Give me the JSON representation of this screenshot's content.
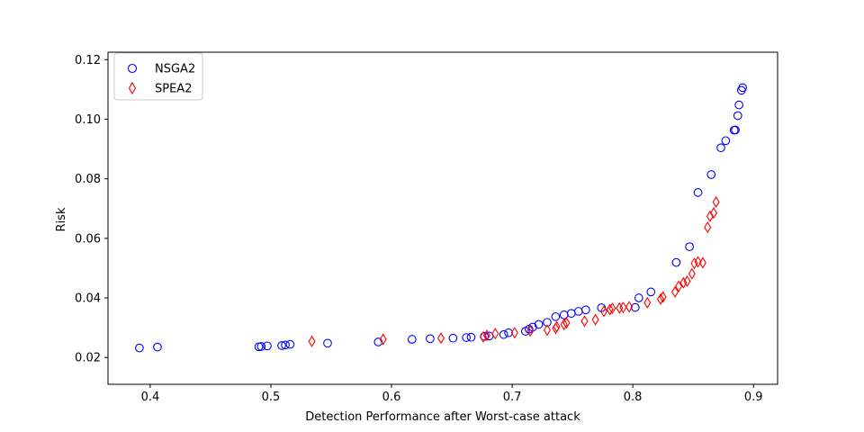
{
  "chart_data": {
    "type": "scatter",
    "title": "",
    "xlabel": "Detection Performance after Worst-case attack",
    "ylabel": "Risk",
    "xlim": [
      0.365,
      0.92
    ],
    "ylim": [
      0.011,
      0.1225
    ],
    "xticks": [
      0.4,
      0.5,
      0.6,
      0.7,
      0.8,
      0.9
    ],
    "xtick_labels": [
      "0.4",
      "0.5",
      "0.6",
      "0.7",
      "0.8",
      "0.9"
    ],
    "yticks": [
      0.02,
      0.04,
      0.06,
      0.08,
      0.1,
      0.12
    ],
    "ytick_labels": [
      "0.02",
      "0.04",
      "0.06",
      "0.08",
      "0.10",
      "0.12"
    ],
    "grid": false,
    "legend_position": "top-left",
    "series": [
      {
        "name": "NSGA2",
        "marker": "circle",
        "color": "#0000ff",
        "points": [
          [
            0.391,
            0.0232
          ],
          [
            0.406,
            0.0235
          ],
          [
            0.49,
            0.0236
          ],
          [
            0.492,
            0.0237
          ],
          [
            0.497,
            0.0239
          ],
          [
            0.509,
            0.024
          ],
          [
            0.512,
            0.0242
          ],
          [
            0.516,
            0.0244
          ],
          [
            0.547,
            0.0248
          ],
          [
            0.589,
            0.0252
          ],
          [
            0.617,
            0.0261
          ],
          [
            0.632,
            0.0263
          ],
          [
            0.651,
            0.0265
          ],
          [
            0.662,
            0.0267
          ],
          [
            0.666,
            0.0268
          ],
          [
            0.677,
            0.0271
          ],
          [
            0.681,
            0.0272
          ],
          [
            0.693,
            0.0277
          ],
          [
            0.697,
            0.0283
          ],
          [
            0.711,
            0.0288
          ],
          [
            0.714,
            0.0295
          ],
          [
            0.717,
            0.0302
          ],
          [
            0.722,
            0.0311
          ],
          [
            0.729,
            0.0318
          ],
          [
            0.736,
            0.0337
          ],
          [
            0.743,
            0.0343
          ],
          [
            0.749,
            0.0348
          ],
          [
            0.755,
            0.0355
          ],
          [
            0.761,
            0.036
          ],
          [
            0.774,
            0.0367
          ],
          [
            0.802,
            0.0368
          ],
          [
            0.805,
            0.04
          ],
          [
            0.815,
            0.042
          ],
          [
            0.836,
            0.0519
          ],
          [
            0.847,
            0.0572
          ],
          [
            0.854,
            0.0754
          ],
          [
            0.865,
            0.0814
          ],
          [
            0.873,
            0.0904
          ],
          [
            0.877,
            0.0928
          ],
          [
            0.884,
            0.0963
          ],
          [
            0.885,
            0.0964
          ],
          [
            0.887,
            0.1012
          ],
          [
            0.888,
            0.1048
          ],
          [
            0.89,
            0.1097
          ],
          [
            0.891,
            0.1106
          ]
        ]
      },
      {
        "name": "SPEA2",
        "marker": "diamond",
        "color": "#ff0000",
        "points": [
          [
            0.534,
            0.0254
          ],
          [
            0.593,
            0.0261
          ],
          [
            0.641,
            0.0265
          ],
          [
            0.676,
            0.0269
          ],
          [
            0.679,
            0.0274
          ],
          [
            0.686,
            0.028
          ],
          [
            0.702,
            0.0283
          ],
          [
            0.715,
            0.0289
          ],
          [
            0.729,
            0.0292
          ],
          [
            0.736,
            0.0298
          ],
          [
            0.737,
            0.0303
          ],
          [
            0.743,
            0.0311
          ],
          [
            0.745,
            0.0316
          ],
          [
            0.76,
            0.0322
          ],
          [
            0.769,
            0.0327
          ],
          [
            0.776,
            0.0355
          ],
          [
            0.781,
            0.0361
          ],
          [
            0.783,
            0.0365
          ],
          [
            0.789,
            0.0366
          ],
          [
            0.792,
            0.0368
          ],
          [
            0.797,
            0.037
          ],
          [
            0.812,
            0.0384
          ],
          [
            0.823,
            0.0396
          ],
          [
            0.825,
            0.0403
          ],
          [
            0.835,
            0.042
          ],
          [
            0.838,
            0.0439
          ],
          [
            0.842,
            0.0451
          ],
          [
            0.845,
            0.0456
          ],
          [
            0.849,
            0.0481
          ],
          [
            0.851,
            0.0516
          ],
          [
            0.854,
            0.0521
          ],
          [
            0.858,
            0.0518
          ],
          [
            0.862,
            0.0637
          ],
          [
            0.864,
            0.0674
          ],
          [
            0.867,
            0.0685
          ],
          [
            0.869,
            0.0722
          ]
        ]
      }
    ]
  }
}
